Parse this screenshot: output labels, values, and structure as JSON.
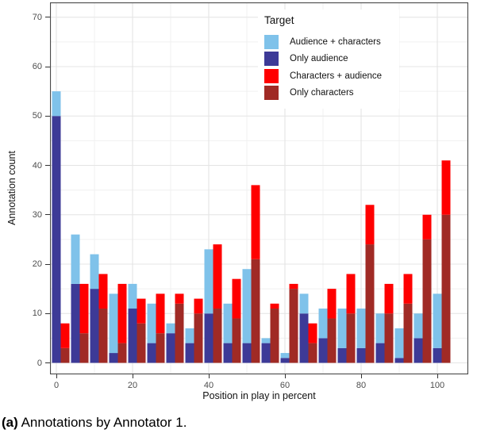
{
  "figure": {
    "caption_label": "(a)",
    "caption_text": " Annotations by Annotator 1."
  },
  "chart_data": {
    "type": "bar",
    "variant": "grouped-pairs-each-stacked",
    "title": "",
    "xlabel": "Position in play in percent",
    "ylabel": "Annotation count",
    "x_ticks": [
      0,
      20,
      40,
      60,
      80,
      100
    ],
    "y_ticks": [
      0,
      10,
      20,
      30,
      40,
      50,
      60,
      70
    ],
    "x_minor": [
      10,
      30,
      50,
      70,
      90
    ],
    "y_minor": [
      5,
      15,
      25,
      35,
      45,
      55,
      65
    ],
    "ylim": [
      0,
      73
    ],
    "grid": "major-and-minor",
    "legend": {
      "title": "Target",
      "position": "top-right-inside"
    },
    "positions": [
      0,
      5,
      10,
      15,
      20,
      25,
      30,
      35,
      40,
      45,
      50,
      55,
      60,
      65,
      70,
      75,
      80,
      85,
      90,
      95,
      100
    ],
    "series": [
      {
        "name": "Audience + characters",
        "color": "#7FC2EA",
        "bar": "audience",
        "stack": "top",
        "values": [
          5,
          10,
          7,
          12,
          5,
          8,
          2,
          3,
          13,
          8,
          15,
          1,
          1,
          4,
          6,
          8,
          8,
          6,
          6,
          5,
          11
        ]
      },
      {
        "name": "Only audience",
        "color": "#3D3A97",
        "bar": "audience",
        "stack": "bottom",
        "values": [
          50,
          16,
          15,
          2,
          11,
          4,
          6,
          4,
          10,
          4,
          4,
          4,
          1,
          10,
          5,
          3,
          3,
          4,
          1,
          5,
          3
        ]
      },
      {
        "name": "Characters + audience",
        "color": "#FF0000",
        "bar": "characters",
        "stack": "top",
        "values": [
          5,
          10,
          7,
          12,
          5,
          8,
          2,
          3,
          13,
          8,
          15,
          1,
          1,
          4,
          6,
          8,
          8,
          6,
          6,
          5,
          11
        ]
      },
      {
        "name": "Only characters",
        "color": "#A02A25",
        "bar": "characters",
        "stack": "bottom",
        "values": [
          3,
          6,
          11,
          4,
          8,
          6,
          12,
          10,
          11,
          9,
          21,
          11,
          15,
          4,
          9,
          10,
          24,
          10,
          12,
          25,
          30
        ]
      }
    ],
    "style_colors": {
      "grid_major": "#E4E4E4",
      "grid_minor": "#F0F0F0",
      "panel_border": "#4A4A4A",
      "tick_text": "#4d4d4d"
    }
  }
}
